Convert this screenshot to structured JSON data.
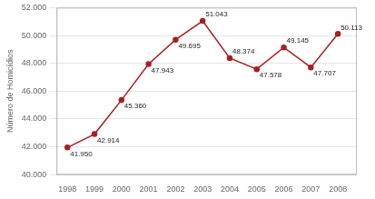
{
  "chart_data": {
    "type": "line",
    "ylabel": "Número de Homicídios",
    "x": [
      1998,
      1999,
      2000,
      2001,
      2002,
      2003,
      2004,
      2005,
      2006,
      2007,
      2008
    ],
    "values": [
      41950,
      42914,
      45360,
      47943,
      49695,
      51043,
      48374,
      47578,
      49145,
      47707,
      50113
    ],
    "value_labels": [
      "41.950",
      "42.914",
      "45.360",
      "47.943",
      "49.695",
      "51.043",
      "48.374",
      "47.578",
      "49.145",
      "47.707",
      "50.113"
    ],
    "data_labels": true,
    "color": "#a82020",
    "marker": "circle",
    "xlim": [
      1997.6,
      2008.7
    ],
    "xticks": [
      1998,
      1999,
      2000,
      2001,
      2002,
      2003,
      2004,
      2005,
      2006,
      2007,
      2008
    ],
    "ylim": [
      40000,
      52000
    ],
    "yticks": [
      {
        "value": 40000,
        "label": "40.000"
      },
      {
        "value": 42000,
        "label": "42.000"
      },
      {
        "value": 44000,
        "label": "44.000"
      },
      {
        "value": 46000,
        "label": "46.000"
      },
      {
        "value": 48000,
        "label": "48.000"
      },
      {
        "value": 50000,
        "label": "50.000"
      },
      {
        "value": 52000,
        "label": "52.000"
      }
    ],
    "grid": true
  }
}
